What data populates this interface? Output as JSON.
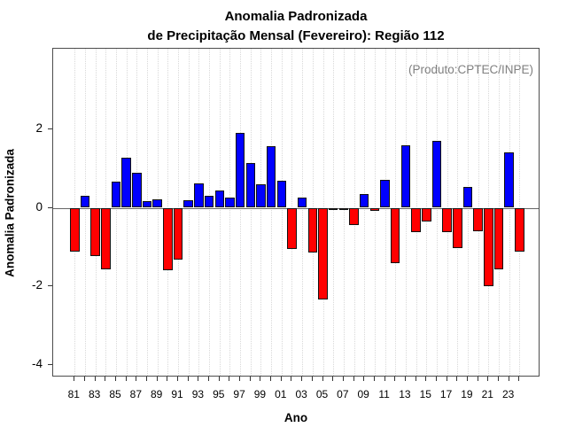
{
  "annotation": "(Produto:CPTEC/INPE)",
  "chart_data": {
    "type": "bar",
    "title_line1": "Anomalia Padronizada",
    "title_line2": "de Precipitação Mensal (Fevereiro): Região 112",
    "xlabel": "Ano",
    "ylabel": "Anomalia Padronizada",
    "years": [
      1981,
      1982,
      1983,
      1984,
      1985,
      1986,
      1987,
      1988,
      1989,
      1990,
      1991,
      1992,
      1993,
      1994,
      1995,
      1996,
      1997,
      1998,
      1999,
      2000,
      2001,
      2002,
      2003,
      2004,
      2005,
      2006,
      2007,
      2008,
      2009,
      2010,
      2011,
      2012,
      2013,
      2014,
      2015,
      2016,
      2017,
      2018,
      2019,
      2020,
      2021,
      2022,
      2023,
      2024
    ],
    "values": [
      -1.11,
      0.3,
      -1.23,
      -1.57,
      0.66,
      1.28,
      0.9,
      0.17,
      0.21,
      -1.6,
      -1.33,
      0.19,
      0.62,
      0.3,
      0.43,
      0.26,
      1.92,
      1.13,
      0.6,
      1.57,
      0.68,
      -1.04,
      0.26,
      -1.13,
      -2.35,
      -0.06,
      -0.03,
      -0.45,
      0.36,
      -0.09,
      0.71,
      -1.42,
      1.6,
      -0.62,
      -0.36,
      1.7,
      -0.62,
      -1.03,
      0.53,
      -0.6,
      -2.0,
      -1.58,
      1.41,
      -1.11
    ],
    "xtick_labels": [
      "81",
      "83",
      "85",
      "87",
      "89",
      "91",
      "93",
      "95",
      "97",
      "99",
      "01",
      "03",
      "05",
      "07",
      "09",
      "11",
      "13",
      "15",
      "17",
      "19",
      "21",
      "23"
    ],
    "yticks": [
      -4,
      -2,
      0,
      2
    ],
    "ylim": [
      -4.33,
      4.06
    ],
    "positive_color": "#0000ff",
    "negative_color": "#ff0000",
    "grid": "vertical-dotted",
    "legend": "none"
  }
}
